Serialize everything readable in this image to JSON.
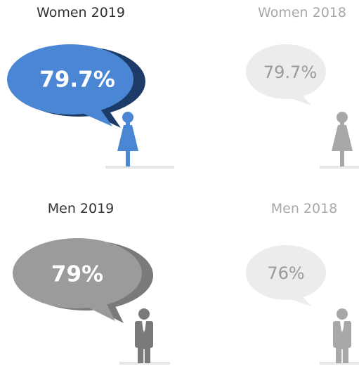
{
  "panels": [
    {
      "title": "Women 2019",
      "value": "79.7%"
    },
    {
      "title": "Women 2018",
      "value": "79.7%"
    },
    {
      "title": "Men 2019",
      "value": "79%"
    },
    {
      "title": "Men 2018",
      "value": "76%"
    }
  ]
}
